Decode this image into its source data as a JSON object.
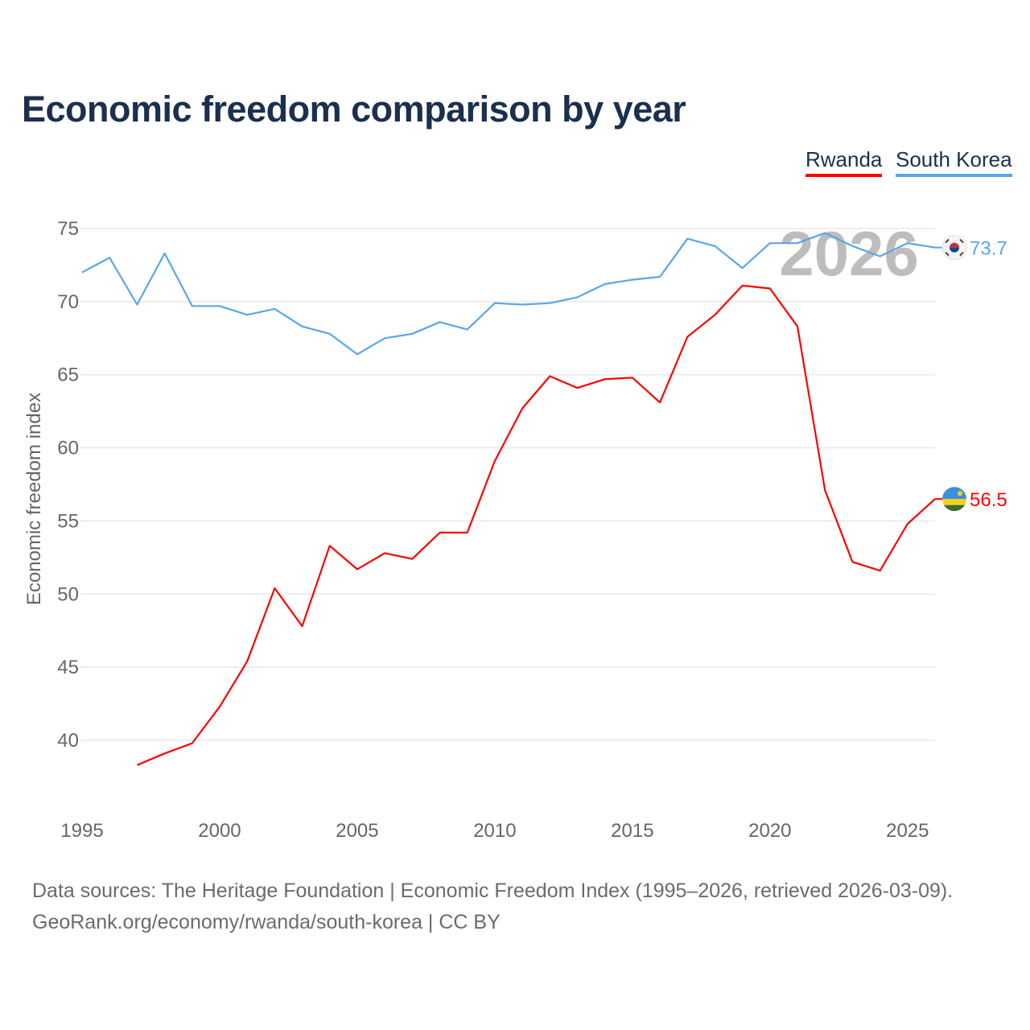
{
  "title": "Economic freedom comparison by year",
  "source_line1": "Data sources: The Heritage Foundation | Economic Freedom Index (1995–2026, retrieved 2026-03-09).",
  "source_line2": "GeoRank.org/economy/rwanda/south-korea | CC BY",
  "chart_data": {
    "type": "line",
    "title": "Economic freedom comparison by year",
    "xlabel": "",
    "ylabel": "Economic freedom index",
    "xlim": [
      1995,
      2026
    ],
    "ylim": [
      35,
      75
    ],
    "xticks": [
      1995,
      2000,
      2005,
      2010,
      2015,
      2020,
      2025
    ],
    "yticks": [
      40,
      45,
      50,
      55,
      60,
      65,
      70,
      75
    ],
    "grid": true,
    "legend_position": "top-right",
    "current_year_label": "2026",
    "series": [
      {
        "name": "Rwanda",
        "color": "#ff0000",
        "end_label": "56.5",
        "flag": "rwanda-flag",
        "x": [
          1997,
          1998,
          1999,
          2000,
          2001,
          2002,
          2003,
          2004,
          2005,
          2006,
          2007,
          2008,
          2009,
          2010,
          2011,
          2012,
          2013,
          2014,
          2015,
          2016,
          2017,
          2018,
          2019,
          2020,
          2021,
          2022,
          2023,
          2024,
          2025,
          2026
        ],
        "values": [
          38.3,
          39.1,
          39.8,
          42.3,
          45.4,
          50.4,
          47.8,
          53.3,
          51.7,
          52.8,
          52.4,
          54.2,
          54.2,
          59.1,
          62.7,
          64.9,
          64.1,
          64.7,
          64.8,
          63.1,
          67.6,
          69.1,
          71.1,
          70.9,
          68.3,
          57.1,
          52.2,
          51.6,
          54.8,
          56.5
        ]
      },
      {
        "name": "South Korea",
        "color": "#5aa5ea",
        "end_label": "73.7",
        "flag": "south-korea-flag",
        "x": [
          1995,
          1996,
          1997,
          1998,
          1999,
          2000,
          2001,
          2002,
          2003,
          2004,
          2005,
          2006,
          2007,
          2008,
          2009,
          2010,
          2011,
          2012,
          2013,
          2014,
          2015,
          2016,
          2017,
          2018,
          2019,
          2020,
          2021,
          2022,
          2023,
          2024,
          2025,
          2026
        ],
        "values": [
          72.0,
          73.0,
          69.8,
          73.3,
          69.7,
          69.7,
          69.1,
          69.5,
          68.3,
          67.8,
          66.4,
          67.5,
          67.8,
          68.6,
          68.1,
          69.9,
          69.8,
          69.9,
          70.3,
          71.2,
          71.5,
          71.7,
          74.3,
          73.8,
          72.3,
          74.0,
          74.0,
          74.7,
          73.8,
          73.1,
          74.0,
          73.7
        ]
      }
    ]
  }
}
